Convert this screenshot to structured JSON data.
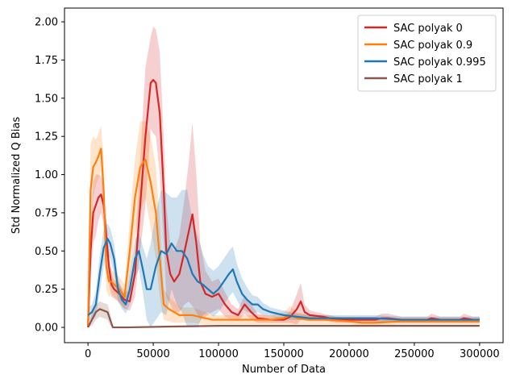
{
  "chart_data": {
    "type": "line",
    "xlabel": "Number of Data",
    "ylabel": "Std Normalized Q Bias",
    "xlim": [
      -18000,
      318000
    ],
    "ylim": [
      -0.1,
      2.09
    ],
    "xticks": [
      0,
      50000,
      100000,
      150000,
      200000,
      250000,
      300000
    ],
    "xtick_labels": [
      "0",
      "50000",
      "100000",
      "150000",
      "200000",
      "250000",
      "300000"
    ],
    "yticks": [
      0.0,
      0.25,
      0.5,
      0.75,
      1.0,
      1.25,
      1.5,
      1.75,
      2.0
    ],
    "ytick_labels": [
      "0.00",
      "0.25",
      "0.50",
      "0.75",
      "1.00",
      "1.25",
      "1.50",
      "1.75",
      "2.00"
    ],
    "grid": false,
    "legend_position": "top-right",
    "series": [
      {
        "name": "SAC polyak 0",
        "color": "#d62728",
        "x": [
          0,
          2000,
          4000,
          6000,
          8000,
          10000,
          12000,
          14000,
          16000,
          18000,
          20000,
          24000,
          28000,
          32000,
          36000,
          40000,
          44000,
          48000,
          50000,
          52000,
          55000,
          58000,
          60000,
          63000,
          66000,
          70000,
          74000,
          77000,
          80000,
          83000,
          86000,
          90000,
          95000,
          100000,
          105000,
          110000,
          115000,
          120000,
          125000,
          130000,
          140000,
          150000,
          155000,
          160000,
          163000,
          166000,
          170000,
          180000,
          190000,
          200000,
          220000,
          225000,
          230000,
          240000,
          260000,
          263000,
          270000,
          285000,
          288000,
          295000,
          300000
        ],
        "y": [
          0.0,
          0.5,
          0.75,
          0.8,
          0.85,
          0.87,
          0.8,
          0.6,
          0.4,
          0.28,
          0.25,
          0.22,
          0.18,
          0.17,
          0.35,
          0.8,
          1.25,
          1.6,
          1.62,
          1.6,
          1.4,
          0.9,
          0.5,
          0.35,
          0.3,
          0.35,
          0.5,
          0.62,
          0.74,
          0.55,
          0.3,
          0.22,
          0.2,
          0.22,
          0.15,
          0.1,
          0.08,
          0.15,
          0.1,
          0.06,
          0.05,
          0.05,
          0.07,
          0.12,
          0.17,
          0.1,
          0.08,
          0.07,
          0.05,
          0.05,
          0.05,
          0.06,
          0.06,
          0.05,
          0.05,
          0.06,
          0.05,
          0.05,
          0.06,
          0.05,
          0.05
        ],
        "band": [
          0.0,
          0.15,
          0.2,
          0.2,
          0.15,
          0.12,
          0.12,
          0.12,
          0.1,
          0.08,
          0.06,
          0.06,
          0.06,
          0.06,
          0.15,
          0.3,
          0.45,
          0.3,
          0.35,
          0.35,
          0.4,
          0.35,
          0.3,
          0.2,
          0.2,
          0.25,
          0.35,
          0.45,
          0.6,
          0.45,
          0.25,
          0.15,
          0.1,
          0.1,
          0.08,
          0.05,
          0.04,
          0.06,
          0.05,
          0.03,
          0.02,
          0.02,
          0.04,
          0.1,
          0.12,
          0.05,
          0.03,
          0.02,
          0.02,
          0.02,
          0.02,
          0.03,
          0.03,
          0.02,
          0.02,
          0.03,
          0.02,
          0.02,
          0.03,
          0.02,
          0.02
        ]
      },
      {
        "name": "SAC polyak 0.9",
        "color": "#ff7f0e",
        "x": [
          0,
          2000,
          4000,
          6000,
          8000,
          10000,
          12000,
          14000,
          16000,
          18000,
          20000,
          24000,
          28000,
          32000,
          36000,
          40000,
          44000,
          48000,
          52000,
          55000,
          58000,
          62000,
          66000,
          70000,
          80000,
          90000,
          95000,
          100000,
          110000,
          130000,
          140000,
          150000,
          155000,
          160000,
          170000,
          180000,
          200000,
          210000,
          220000,
          240000,
          270000,
          300000
        ],
        "y": [
          0.0,
          0.9,
          1.05,
          1.08,
          1.12,
          1.17,
          0.9,
          0.4,
          0.3,
          0.3,
          0.28,
          0.25,
          0.2,
          0.5,
          0.85,
          1.05,
          1.1,
          0.95,
          0.75,
          0.45,
          0.15,
          0.12,
          0.1,
          0.08,
          0.08,
          0.06,
          0.05,
          0.05,
          0.05,
          0.05,
          0.05,
          0.06,
          0.08,
          0.06,
          0.05,
          0.05,
          0.04,
          0.03,
          0.03,
          0.04,
          0.04,
          0.04
        ],
        "band": [
          0.0,
          0.3,
          0.2,
          0.15,
          0.15,
          0.15,
          0.2,
          0.15,
          0.1,
          0.08,
          0.08,
          0.08,
          0.08,
          0.2,
          0.25,
          0.3,
          0.25,
          0.3,
          0.3,
          0.25,
          0.1,
          0.08,
          0.07,
          0.05,
          0.05,
          0.04,
          0.03,
          0.03,
          0.03,
          0.03,
          0.03,
          0.04,
          0.06,
          0.04,
          0.03,
          0.03,
          0.02,
          0.02,
          0.02,
          0.02,
          0.02,
          0.02
        ]
      },
      {
        "name": "SAC polyak 0.995",
        "color": "#1f77b4",
        "x": [
          0,
          3000,
          6000,
          9000,
          12000,
          15000,
          17000,
          20000,
          23000,
          26000,
          29000,
          32000,
          36000,
          39000,
          42000,
          45000,
          48000,
          52000,
          56000,
          60000,
          64000,
          68000,
          72000,
          76000,
          80000,
          84000,
          88000,
          92000,
          96000,
          100000,
          104000,
          108000,
          111000,
          114000,
          118000,
          122000,
          126000,
          130000,
          134000,
          140000,
          150000,
          160000,
          170000,
          180000,
          200000,
          220000,
          240000,
          260000,
          280000,
          300000
        ],
        "y": [
          0.08,
          0.1,
          0.15,
          0.35,
          0.52,
          0.58,
          0.55,
          0.45,
          0.25,
          0.18,
          0.15,
          0.25,
          0.45,
          0.5,
          0.38,
          0.25,
          0.25,
          0.4,
          0.5,
          0.48,
          0.55,
          0.5,
          0.5,
          0.45,
          0.35,
          0.3,
          0.28,
          0.25,
          0.22,
          0.25,
          0.3,
          0.35,
          0.38,
          0.3,
          0.22,
          0.18,
          0.15,
          0.15,
          0.12,
          0.1,
          0.08,
          0.07,
          0.06,
          0.06,
          0.06,
          0.06,
          0.05,
          0.05,
          0.05,
          0.05
        ],
        "band": [
          0.05,
          0.05,
          0.08,
          0.12,
          0.12,
          0.1,
          0.1,
          0.1,
          0.08,
          0.06,
          0.06,
          0.1,
          0.12,
          0.12,
          0.15,
          0.2,
          0.3,
          0.35,
          0.4,
          0.4,
          0.3,
          0.35,
          0.4,
          0.45,
          0.35,
          0.3,
          0.2,
          0.15,
          0.15,
          0.15,
          0.15,
          0.15,
          0.15,
          0.12,
          0.1,
          0.08,
          0.06,
          0.05,
          0.04,
          0.03,
          0.03,
          0.02,
          0.02,
          0.02,
          0.02,
          0.02,
          0.02,
          0.02,
          0.02,
          0.02
        ]
      },
      {
        "name": "SAC polyak 1",
        "color": "#8c564b",
        "x": [
          0,
          3000,
          6000,
          9000,
          12000,
          15000,
          17000,
          19000,
          22000,
          30000,
          60000,
          100000,
          150000,
          200000,
          250000,
          300000
        ],
        "y": [
          0.0,
          0.05,
          0.1,
          0.12,
          0.11,
          0.1,
          0.05,
          0.0,
          0.0,
          0.0,
          0.005,
          0.01,
          0.01,
          0.01,
          0.01,
          0.01
        ],
        "band": [
          0.0,
          0.04,
          0.05,
          0.05,
          0.05,
          0.05,
          0.04,
          0.01,
          0.0,
          0.0,
          0.002,
          0.003,
          0.003,
          0.003,
          0.003,
          0.003
        ]
      }
    ]
  }
}
